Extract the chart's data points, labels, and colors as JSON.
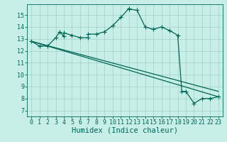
{
  "xlabel": "Humidex (Indice chaleur)",
  "xlim": [
    -0.5,
    23.5
  ],
  "ylim": [
    6.5,
    15.9
  ],
  "xticks": [
    0,
    1,
    2,
    3,
    4,
    5,
    6,
    7,
    8,
    9,
    10,
    11,
    12,
    13,
    14,
    15,
    16,
    17,
    18,
    19,
    20,
    21,
    22,
    23
  ],
  "yticks": [
    7,
    8,
    9,
    10,
    11,
    12,
    13,
    14,
    15
  ],
  "bg_color": "#c8eee8",
  "grid_color": "#a0d0c8",
  "line_color": "#006655",
  "curve1_x": [
    0,
    1,
    2,
    3,
    3.5,
    4,
    4,
    5,
    6,
    7,
    7,
    8,
    9,
    10,
    11,
    12,
    12,
    13,
    14,
    15,
    16,
    17,
    18,
    18.5,
    19,
    20,
    21,
    22,
    23
  ],
  "curve1_y": [
    12.8,
    12.4,
    12.4,
    13.1,
    13.6,
    13.2,
    13.5,
    13.3,
    13.1,
    13.1,
    13.4,
    13.4,
    13.6,
    14.1,
    14.8,
    15.55,
    15.5,
    15.4,
    14.0,
    13.8,
    14.0,
    13.7,
    13.3,
    8.6,
    8.6,
    7.6,
    8.0,
    8.0,
    8.15
  ],
  "line1_x": [
    0,
    23
  ],
  "line1_y": [
    12.8,
    8.15
  ],
  "line2_x": [
    0,
    23
  ],
  "line2_y": [
    12.8,
    8.6
  ],
  "fontsize_tick": 6,
  "fontsize_label": 7.5,
  "markersize": 2.5,
  "lw": 0.9
}
